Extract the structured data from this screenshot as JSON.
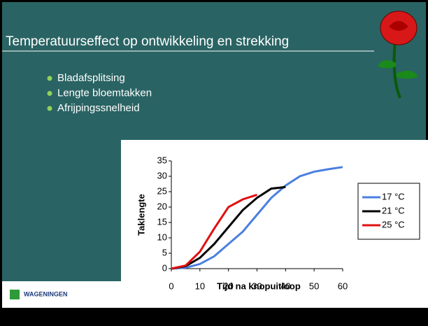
{
  "slide": {
    "title": "Temperatuurseffect op ontwikkeling en strekking",
    "bullets": [
      "Bladafsplitsing",
      "Lengte bloemtakken",
      "Afrijpingssnelheid"
    ],
    "logo": "WAGENINGEN"
  },
  "chart_data": {
    "type": "line",
    "xlabel": "Tijd na knopuitloop",
    "ylabel": "Taklengte",
    "xlim": [
      0,
      60
    ],
    "xticks": [
      0,
      10,
      20,
      30,
      40,
      50,
      60
    ],
    "ylim": [
      0,
      35
    ],
    "yticks": [
      0,
      5,
      10,
      15,
      20,
      25,
      30,
      35
    ],
    "series": [
      {
        "name": "17 °C",
        "color": "#4a7fe0",
        "x": [
          0,
          5,
          10,
          15,
          20,
          25,
          30,
          35,
          40,
          45,
          50,
          55,
          60
        ],
        "values": [
          0,
          0.3,
          1.5,
          4,
          8,
          12,
          17.5,
          23,
          27,
          30,
          31.5,
          32.3,
          33
        ]
      },
      {
        "name": "21 °C",
        "color": "#000000",
        "x": [
          0,
          5,
          10,
          15,
          20,
          25,
          30,
          35,
          40
        ],
        "values": [
          0,
          0.8,
          3.5,
          8,
          13.5,
          19,
          23,
          26,
          26.5
        ]
      },
      {
        "name": "25 °C",
        "color": "#e01010",
        "x": [
          0,
          5,
          10,
          15,
          20,
          25,
          30
        ],
        "values": [
          0,
          1,
          5.5,
          13,
          20,
          22.5,
          24
        ]
      }
    ]
  }
}
